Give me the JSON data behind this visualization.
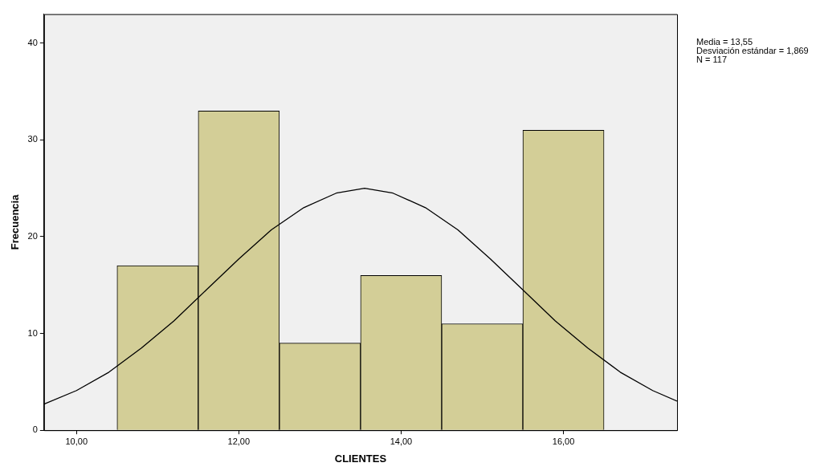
{
  "chart_data": {
    "type": "histogram",
    "xlabel": "CLIENTES",
    "ylabel": "Frecuencia",
    "bins": [
      10.5,
      11.5,
      12.5,
      13.5,
      14.5,
      15.5,
      16.5
    ],
    "values": [
      17,
      33,
      9,
      16,
      11,
      31
    ],
    "color": "#d3ce97",
    "series": [
      {
        "type": "line",
        "color": "#000000",
        "x": [
          9.6,
          10.0,
          10.4,
          10.8,
          11.2,
          11.6,
          12.0,
          12.4,
          12.8,
          13.2,
          13.55,
          13.9,
          14.3,
          14.7,
          15.1,
          15.5,
          15.9,
          16.3,
          16.7,
          17.1,
          17.4
        ],
        "values": [
          2.7,
          4.1,
          6.0,
          8.5,
          11.3,
          14.5,
          17.7,
          20.7,
          23.0,
          24.5,
          25.0,
          24.5,
          23.0,
          20.7,
          17.7,
          14.5,
          11.3,
          8.5,
          6.0,
          4.1,
          3.0
        ]
      }
    ],
    "xlim": [
      9.6,
      17.4
    ],
    "xticks": [
      {
        "value": 10,
        "label": "10,00"
      },
      {
        "value": 12,
        "label": "12,00"
      },
      {
        "value": 14,
        "label": "14,00"
      },
      {
        "value": 16,
        "label": "16,00"
      }
    ],
    "ylim": [
      0,
      43
    ],
    "yticks": [
      0,
      10,
      20,
      30,
      40
    ],
    "grid": false,
    "legend": false,
    "annotations": [
      "Media = 13,55",
      "Desviación estándar = 1,869",
      "N = 117"
    ]
  }
}
